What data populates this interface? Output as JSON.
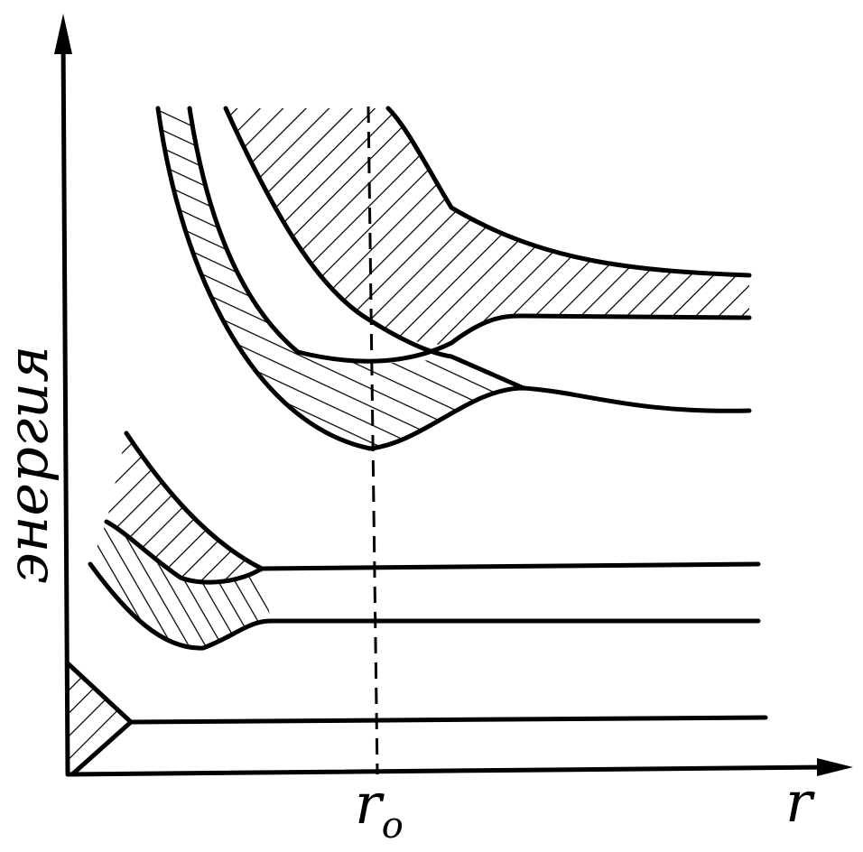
{
  "y_axis_label": "энергия",
  "x_axis_label": "r",
  "marker": {
    "label": "r",
    "subscript": "o"
  }
}
